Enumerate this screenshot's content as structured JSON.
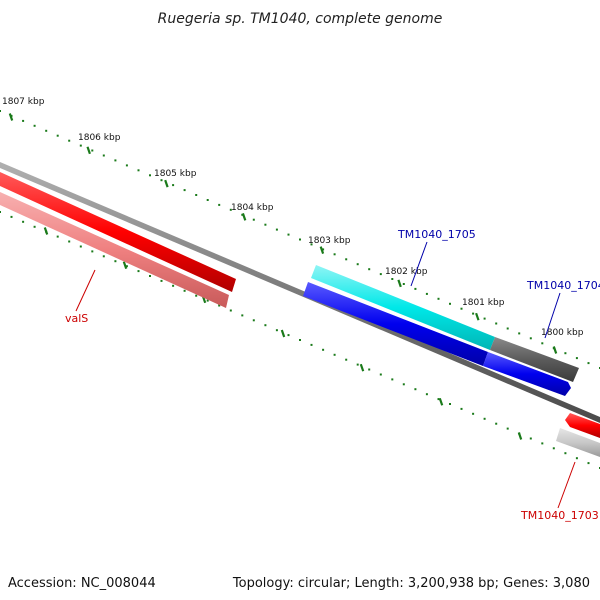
{
  "header": {
    "title": "Ruegeria sp. TM1040, complete genome"
  },
  "footer": {
    "accession": "Accession: NC_008044",
    "summary": "Topology: circular; Length: 3,200,938 bp; Genes: 3,080"
  },
  "scale": {
    "ticks": [
      "1807 kbp",
      "1806 kbp",
      "1805 kbp",
      "1804 kbp",
      "1803 kbp",
      "1802 kbp",
      "1801 kbp",
      "1800 kbp"
    ],
    "tick_color": "#1a7a1a"
  },
  "features": [
    {
      "label": "valS",
      "label_color": "#cc0000",
      "feature_color": "#ff0000",
      "rna_color": "#f08080"
    },
    {
      "label": "TM1040_1705",
      "label_color": "#0000aa",
      "feature_color": "#00e5e5",
      "rna_color": "#0000ee"
    },
    {
      "label": "TM1040_1704",
      "label_color": "#0000aa",
      "feature_color": "#606060",
      "rna_color": "#0000ee"
    },
    {
      "label": "TM1040_1703",
      "label_color": "#cc0000",
      "feature_color": "#ee0000",
      "rna_color": "#c8c8c8"
    }
  ],
  "backbone_color": "#7a7a7a"
}
